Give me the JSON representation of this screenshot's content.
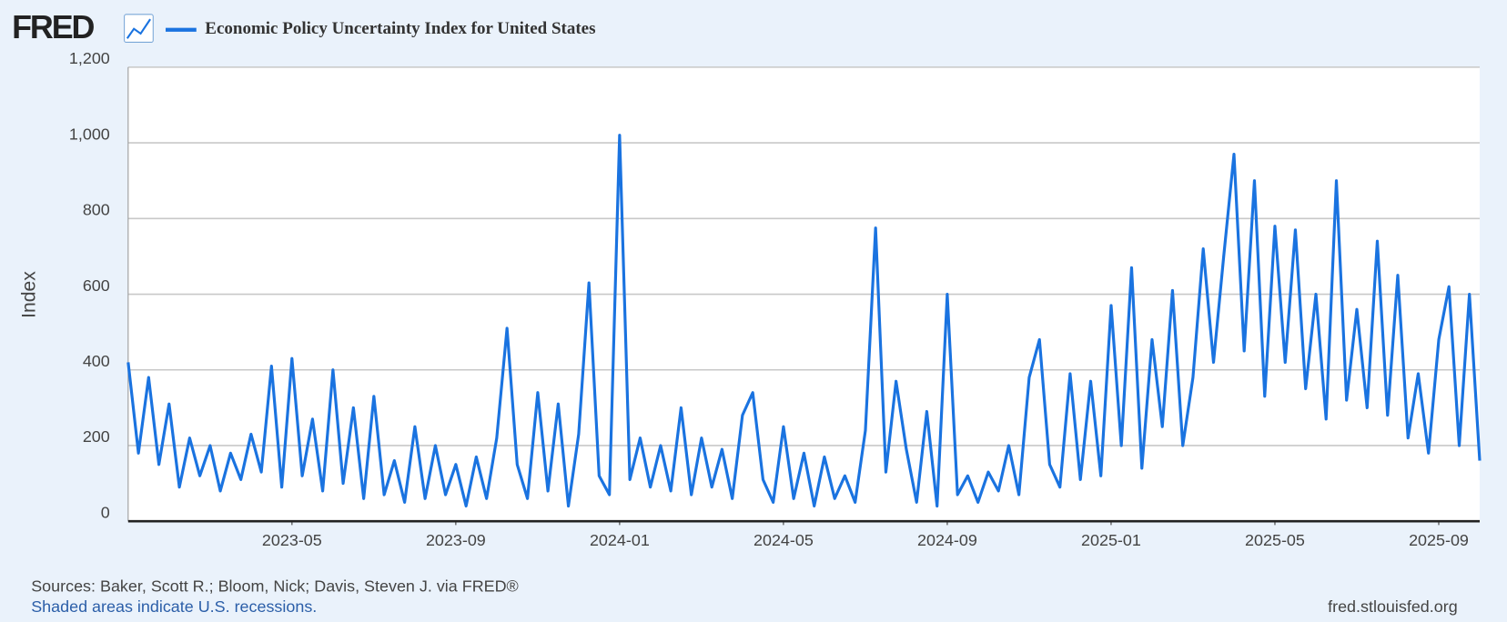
{
  "chart_data": {
    "type": "line",
    "logo": "FRED",
    "ylabel": "Index",
    "source": "Sources: Baker, Scott R.; Bloom, Nick; Davis, Steven J. via FRED®",
    "note": "Shaded areas indicate U.S. recessions.",
    "site": "fred.stlouisfed.org",
    "x": [
      "2023-01",
      "2023-01",
      "2023-01",
      "2023-01",
      "2023-02",
      "2023-02",
      "2023-02",
      "2023-02",
      "2023-03",
      "2023-03",
      "2023-03",
      "2023-03",
      "2023-04",
      "2023-04",
      "2023-04",
      "2023-04",
      "2023-05",
      "2023-05",
      "2023-05",
      "2023-05",
      "2023-06",
      "2023-06",
      "2023-06",
      "2023-06",
      "2023-07",
      "2023-07",
      "2023-07",
      "2023-07",
      "2023-08",
      "2023-08",
      "2023-08",
      "2023-08",
      "2023-09",
      "2023-09",
      "2023-09",
      "2023-09",
      "2023-10",
      "2023-10",
      "2023-10",
      "2023-10",
      "2023-11",
      "2023-11",
      "2023-11",
      "2023-11",
      "2023-12",
      "2023-12",
      "2023-12",
      "2023-12",
      "2024-01",
      "2024-01",
      "2024-01",
      "2024-01",
      "2024-02",
      "2024-02",
      "2024-02",
      "2024-02",
      "2024-03",
      "2024-03",
      "2024-03",
      "2024-03",
      "2024-04",
      "2024-04",
      "2024-04",
      "2024-04",
      "2024-05",
      "2024-05",
      "2024-05",
      "2024-05",
      "2024-06",
      "2024-06",
      "2024-06",
      "2024-06",
      "2024-07",
      "2024-07",
      "2024-07",
      "2024-07",
      "2024-08",
      "2024-08",
      "2024-08",
      "2024-08",
      "2024-09",
      "2024-09",
      "2024-09",
      "2024-09",
      "2024-10",
      "2024-10",
      "2024-10",
      "2024-10",
      "2024-11",
      "2024-11",
      "2024-11",
      "2024-11",
      "2024-12",
      "2024-12",
      "2024-12",
      "2024-12",
      "2025-01",
      "2025-01",
      "2025-01",
      "2025-01",
      "2025-02",
      "2025-02",
      "2025-02",
      "2025-02",
      "2025-03",
      "2025-03",
      "2025-03",
      "2025-03",
      "2025-04",
      "2025-04",
      "2025-04",
      "2025-04",
      "2025-05",
      "2025-05",
      "2025-05",
      "2025-05",
      "2025-06",
      "2025-06",
      "2025-06",
      "2025-06",
      "2025-07",
      "2025-07",
      "2025-07",
      "2025-07",
      "2025-08",
      "2025-08",
      "2025-08",
      "2025-08",
      "2025-09",
      "2025-09",
      "2025-09",
      "2025-09",
      "2025-10"
    ],
    "series": [
      {
        "name": "Economic Policy Uncertainty Index for United States",
        "color": "#1a73e0",
        "values": [
          420,
          180,
          380,
          150,
          310,
          90,
          220,
          120,
          200,
          80,
          180,
          110,
          230,
          130,
          410,
          90,
          430,
          120,
          270,
          80,
          400,
          100,
          300,
          60,
          330,
          70,
          160,
          50,
          250,
          60,
          200,
          70,
          150,
          40,
          170,
          60,
          220,
          510,
          150,
          60,
          340,
          80,
          310,
          40,
          230,
          630,
          120,
          70,
          1020,
          110,
          220,
          90,
          200,
          80,
          300,
          70,
          220,
          90,
          190,
          60,
          280,
          340,
          110,
          50,
          250,
          60,
          180,
          40,
          170,
          60,
          120,
          50,
          240,
          775,
          130,
          370,
          190,
          50,
          290,
          40,
          600,
          70,
          120,
          50,
          130,
          80,
          200,
          70,
          380,
          480,
          150,
          90,
          390,
          110,
          370,
          120,
          570,
          200,
          670,
          140,
          480,
          250,
          610,
          200,
          380,
          720,
          420,
          700,
          970,
          450,
          900,
          330,
          780,
          420,
          770,
          350,
          600,
          270,
          900,
          320,
          560,
          300,
          740,
          280,
          650,
          220,
          390,
          180,
          480,
          620,
          200,
          600,
          160
        ]
      }
    ],
    "xlim": [
      "2023-01",
      "2025-10"
    ],
    "xticks": [
      "2023-05",
      "2023-09",
      "2024-01",
      "2024-05",
      "2024-09",
      "2025-01",
      "2025-05",
      "2025-09"
    ],
    "ylim": [
      0,
      1200
    ],
    "yticks": [
      0,
      200,
      400,
      600,
      800,
      {
        "value": 1000,
        "label": "1,000"
      },
      {
        "value": 1200,
        "label": "1,200"
      }
    ],
    "grid": true
  }
}
